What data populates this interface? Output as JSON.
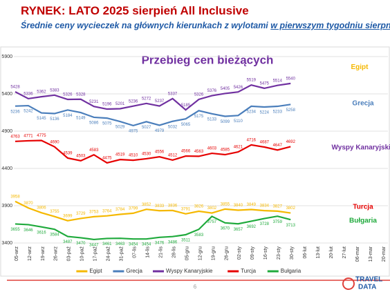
{
  "header": {
    "title": "RYNEK: LATO 2025 sierpień All Inclusive",
    "subtitle": "Średnie ceny wycieczek na głównych kierunkach z wylotami",
    "subtitle_underlined": "w pierwszym tygodniu sierpnia"
  },
  "page_number": "6",
  "logo": {
    "line1": "TRAVEL",
    "line2": "DATA"
  },
  "chart_data": {
    "type": "line",
    "title": "Przebieg cen bieżących",
    "categories": [
      "05-wrz",
      "12-wrz",
      "19-wrz",
      "26-wrz",
      "03-paź",
      "10-paź",
      "17-paź",
      "24-paź",
      "31-paź",
      "07-lis",
      "14-lis",
      "21-lis",
      "28-lis",
      "05-gru",
      "12-gru",
      "19-gru",
      "26-gru",
      "02-sty",
      "09-sty",
      "16-sty",
      "23-sty",
      "30-sty",
      "06-lut",
      "13-lut",
      "20-lut",
      "27-lut",
      "06-mar",
      "13-mar",
      "20-mar"
    ],
    "series": [
      {
        "name": "Egipt",
        "color": "#f5b800",
        "values": [
          3958,
          3870,
          3806,
          3755,
          3699,
          3729,
          3753,
          3764,
          3784,
          3799,
          3852,
          3833,
          3836,
          3791,
          3826,
          3802,
          3855,
          3840,
          3849,
          3834,
          3827,
          3802,
          null,
          null,
          null,
          null,
          null,
          null,
          null
        ]
      },
      {
        "name": "Grecja",
        "color": "#4a7ebb",
        "values": [
          5236,
          5242,
          5145,
          5136,
          5184,
          5149,
          5086,
          5075,
          5029,
          4975,
          5027,
          4979,
          5032,
          5065,
          5175,
          5133,
          5099,
          5110,
          5234,
          5224,
          5233,
          5258,
          null,
          null,
          null,
          null,
          null,
          null,
          null
        ]
      },
      {
        "name": "Wyspy Kanaryjskie",
        "color": "#7030a0",
        "values": [
          5428,
          5336,
          5362,
          5383,
          5326,
          5328,
          5231,
          5196,
          5201,
          5236,
          5272,
          5237,
          5337,
          5185,
          5326,
          5376,
          5405,
          5426,
          5519,
          5475,
          5514,
          5540,
          null,
          null,
          null,
          null,
          null,
          null,
          null
        ]
      },
      {
        "name": "Turcja",
        "color": "#e60000",
        "values": [
          4763,
          4771,
          4775,
          4690,
          4539,
          4503,
          4583,
          4475,
          4519,
          4510,
          4530,
          4556,
          4512,
          4566,
          4563,
          4603,
          4585,
          4621,
          4716,
          4687,
          4647,
          4692,
          null,
          null,
          null,
          null,
          null,
          null,
          null
        ]
      },
      {
        "name": "Bułgaria",
        "color": "#1faa3c",
        "values": [
          3655,
          3646,
          3616,
          3584,
          3487,
          3470,
          3447,
          3461,
          3463,
          3454,
          3454,
          3476,
          3486,
          3511,
          3583,
          3757,
          3670,
          3657,
          3692,
          3728,
          3759,
          3713,
          null,
          null,
          null,
          null,
          null,
          null,
          null
        ]
      }
    ],
    "ylim": [
      3400,
      5900
    ],
    "yticks": [
      3400,
      3900,
      4400,
      4900,
      5400,
      5900
    ],
    "grid": true,
    "legend": "bottom"
  }
}
